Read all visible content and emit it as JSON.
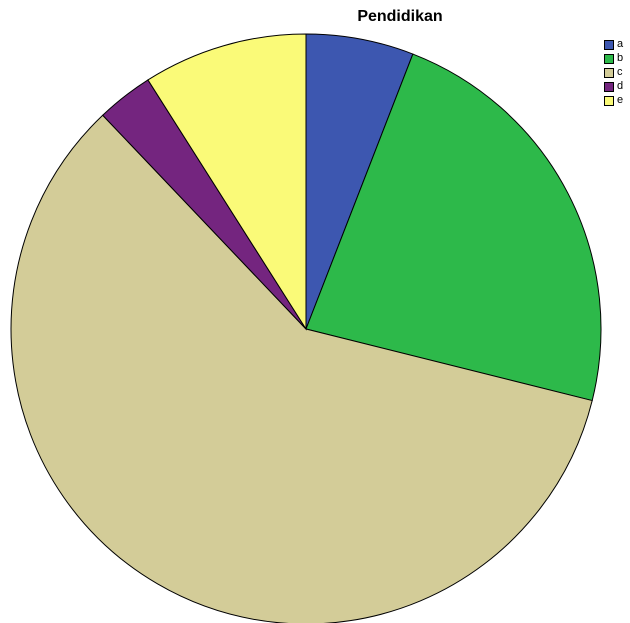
{
  "chart_data": {
    "type": "pie",
    "title": "Pendidikan",
    "legend_position": "top-right",
    "categories": [
      "a",
      "b",
      "c",
      "d",
      "e"
    ],
    "values": [
      5.9,
      23.0,
      59.0,
      3.1,
      9.0
    ],
    "colors": [
      "#3d57b0",
      "#2db94a",
      "#d3cc98",
      "#74257f",
      "#fafa78"
    ],
    "start_angle_deg": 0,
    "direction": "clockwise"
  }
}
